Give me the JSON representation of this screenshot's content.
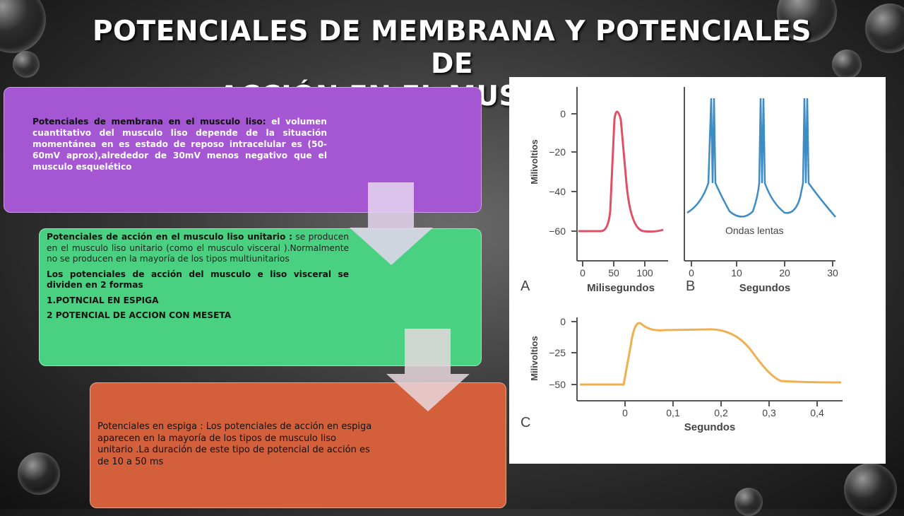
{
  "slide": {
    "title_line1": "POTENCIALES DE MEMBRANA Y POTENCIALES DE",
    "title_line2": "ACCIÓN EN EL MUSCULO LISO"
  },
  "box1": {
    "lead": "Potenciales de membrana en el musculo liso:",
    "rest": " el volumen cuantitativo del musculo liso depende de la situación momentánea en es estado de reposo intracelular es (50-60mV aprox),alrededor de 30mV menos negativo que el musculo esquelético"
  },
  "box2": {
    "lead": "Potenciales de acción en el musculo liso unitario :",
    "rest": " se producen en el musculo liso unitario (como el musculo visceral ).Normalmente no se producen en la mayoría de los tipos multiunitarios",
    "para2": "Los potenciales de acción del musculo e liso visceral se dividen en 2  formas",
    "item1": "1.POTNCIAL EN ESPIGA",
    "item2": "2 POTENCIAL DE ACCION CON MESETA"
  },
  "box3": {
    "lead": "Potenciales en espiga :",
    "rest": " Los potenciales de acción en espiga aparecen en la mayoría de los tipos de musculo liso unitario .La duración de este tipo de potencial de acción es de 10 a 50 ms"
  },
  "figure": {
    "colors": {
      "red": "#e05064",
      "blue": "#3d8cc4",
      "orange": "#f0b050",
      "axis": "#555555"
    },
    "panelA": {
      "label": "A",
      "ylabel": "Milivoltios",
      "xlabel": "Milisegundos",
      "yticks": [
        "0",
        "−20",
        "−40",
        "−60"
      ],
      "xticks": [
        "0",
        "50",
        "100"
      ]
    },
    "panelB": {
      "label": "B",
      "xlabel": "Segundos",
      "annotation": "Ondas lentas",
      "xticks": [
        "0",
        "10",
        "20",
        "30"
      ]
    },
    "panelC": {
      "label": "C",
      "ylabel": "Milivoltios",
      "xlabel": "Segundos",
      "yticks": [
        "0",
        "−25",
        "−50"
      ],
      "xticks": [
        "0",
        "0,1",
        "0,2",
        "0,3",
        "0,4"
      ]
    }
  }
}
